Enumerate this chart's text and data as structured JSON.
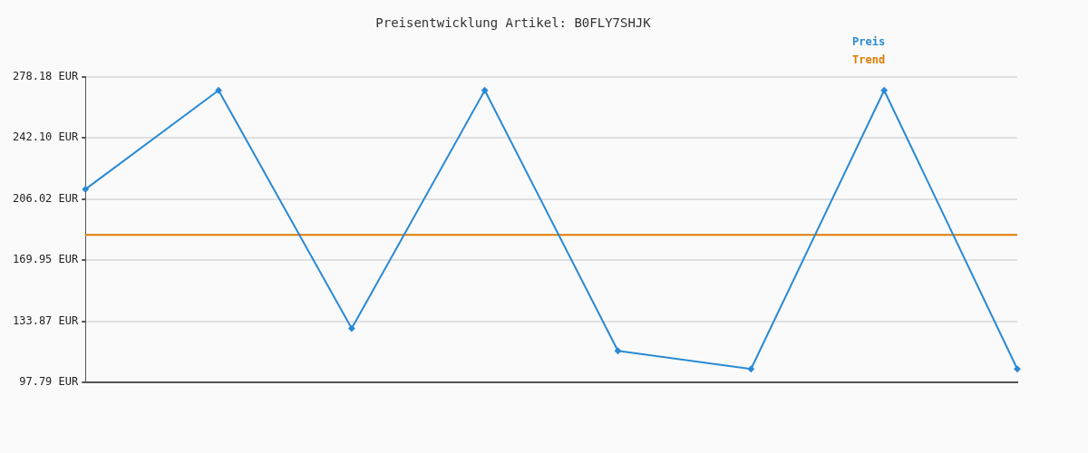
{
  "chart_data": {
    "type": "line",
    "title": "Preisentwicklung Artikel: B0FLY7SHJK",
    "categories": [
      null,
      null,
      null,
      null,
      null,
      null,
      null,
      null
    ],
    "series": [
      {
        "name": "Preis",
        "color": "#2a8ad4",
        "marker": "diamond",
        "values": [
          211.8,
          270.2,
          129.6,
          270.2,
          116.4,
          105.7,
          270.2,
          105.7
        ]
      },
      {
        "name": "Trend",
        "color": "#e07b00",
        "marker": "none",
        "values": [
          184.8,
          184.8,
          184.8,
          184.8,
          184.8,
          184.8,
          184.8,
          184.8
        ]
      }
    ],
    "ylim": [
      97.79,
      278.18
    ],
    "yticks": [
      {
        "value": 97.79,
        "label": "97.79 EUR"
      },
      {
        "value": 133.87,
        "label": "133.87 EUR"
      },
      {
        "value": 169.95,
        "label": "169.95 EUR"
      },
      {
        "value": 206.02,
        "label": "206.02 EUR"
      },
      {
        "value": 242.1,
        "label": "242.10 EUR"
      },
      {
        "value": 278.18,
        "label": "278.18 EUR"
      }
    ],
    "grid": "y",
    "legend": "top right",
    "line_style": "solid"
  }
}
